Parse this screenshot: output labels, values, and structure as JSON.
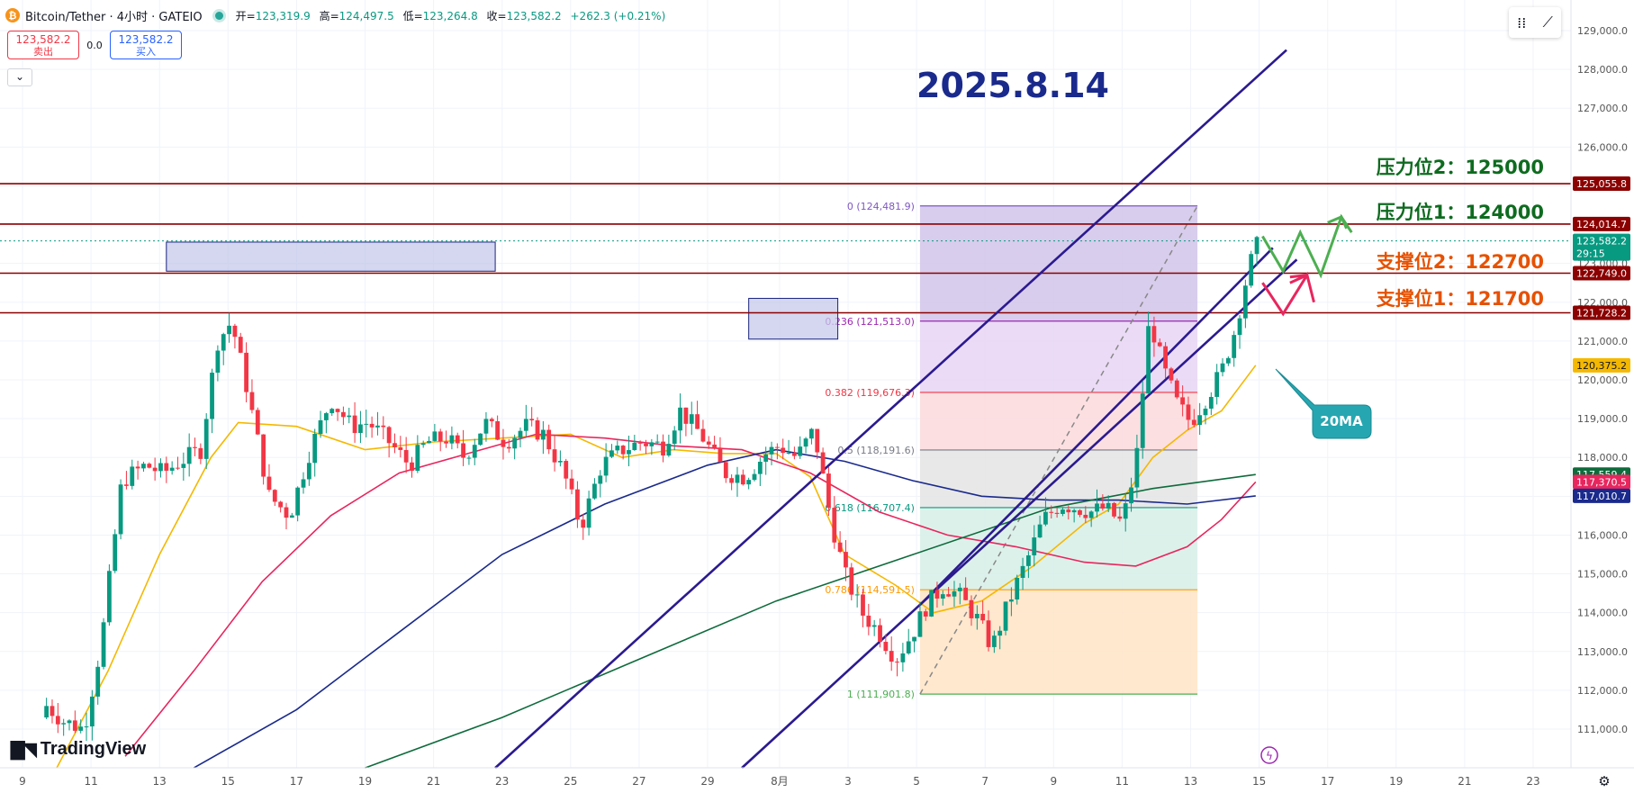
{
  "header": {
    "symbol_title": "Bitcoin/Tether · 4小时 · GATEIO",
    "ohlc_open_label": "开=",
    "ohlc_open": "123,319.9",
    "ohlc_high_label": "高=",
    "ohlc_high": "124,497.5",
    "ohlc_low_label": "低=",
    "ohlc_low": "123,264.8",
    "ohlc_close_label": "收=",
    "ohlc_close": "123,582.2",
    "ohlc_change": "+262.3 (+0.21%)"
  },
  "trade": {
    "sell_price": "123,582.2",
    "sell_label": "卖出",
    "spread": "0.0",
    "buy_price": "123,582.2",
    "buy_label": "买入"
  },
  "branding": {
    "logo_text": "TradingView"
  },
  "chart_data": {
    "type": "candlestick",
    "title": "2025.8.14",
    "ylim": [
      110000,
      129500
    ],
    "y_ticks": [
      111000,
      112000,
      113000,
      114000,
      115000,
      116000,
      117000,
      118000,
      119000,
      120000,
      121000,
      122000,
      123000,
      124000,
      125000,
      126000,
      127000,
      128000,
      129000
    ],
    "y_tick_labels": [
      "111,000.0",
      "112,000.0",
      "113,000.0",
      "114,000.0",
      "115,000.0",
      "116,000.0",
      "117,000.0",
      "118,000.0",
      "119,000.0",
      "120,000.0",
      "121,000.0",
      "122,000.0",
      "123,000.0",
      "124,000.0",
      "125,000.0",
      "126,000.0",
      "127,000.0",
      "128,000.0",
      "129,000.0"
    ],
    "x_tick_labels": [
      "9",
      "11",
      "13",
      "15",
      "17",
      "19",
      "21",
      "23",
      "25",
      "27",
      "29",
      "8月",
      "3",
      "5",
      "7",
      "9",
      "11",
      "13",
      "15",
      "17",
      "19",
      "21",
      "23"
    ],
    "x_tick_days": [
      0,
      2,
      4,
      6,
      8,
      10,
      12,
      14,
      16,
      18,
      20,
      22.1,
      24.1,
      26.1,
      28.1,
      30.1,
      32.1,
      34.1,
      36.1,
      38.1,
      40.1,
      42.1,
      44.1
    ],
    "candle_track_days": [
      [
        0.7,
        111600
      ],
      [
        1.2,
        111200
      ],
      [
        1.8,
        111000
      ],
      [
        2.3,
        113200
      ],
      [
        2.9,
        117400
      ],
      [
        3.6,
        117800
      ],
      [
        4.1,
        117600
      ],
      [
        4.6,
        117900
      ],
      [
        5.2,
        118200
      ],
      [
        5.7,
        121000
      ],
      [
        6.1,
        121500
      ],
      [
        6.5,
        120000
      ],
      [
        7.2,
        117000
      ],
      [
        7.8,
        116500
      ],
      [
        8.4,
        118200
      ],
      [
        9.0,
        119500
      ],
      [
        9.6,
        118800
      ],
      [
        10.1,
        118900
      ],
      [
        10.7,
        118400
      ],
      [
        11.3,
        117800
      ],
      [
        11.8,
        118400
      ],
      [
        12.4,
        118500
      ],
      [
        12.9,
        118000
      ],
      [
        13.5,
        118900
      ],
      [
        14.1,
        118400
      ],
      [
        14.7,
        118800
      ],
      [
        15.2,
        118600
      ],
      [
        15.8,
        117600
      ],
      [
        16.3,
        116200
      ],
      [
        16.9,
        117800
      ],
      [
        17.5,
        118200
      ],
      [
        18.1,
        118400
      ],
      [
        18.7,
        118300
      ],
      [
        19.2,
        119200
      ],
      [
        19.8,
        118600
      ],
      [
        20.5,
        117600
      ],
      [
        21.1,
        117500
      ],
      [
        21.7,
        118100
      ],
      [
        22.1,
        118300
      ],
      [
        22.6,
        118000
      ],
      [
        23.1,
        118700
      ],
      [
        23.6,
        116400
      ],
      [
        24.0,
        115000
      ],
      [
        24.5,
        114000
      ],
      [
        25.0,
        113500
      ],
      [
        25.5,
        112800
      ],
      [
        26.0,
        113500
      ],
      [
        26.4,
        114200
      ],
      [
        26.9,
        114700
      ],
      [
        27.4,
        114400
      ],
      [
        27.9,
        113800
      ],
      [
        28.3,
        113100
      ],
      [
        28.8,
        114300
      ],
      [
        29.3,
        115300
      ],
      [
        29.8,
        116400
      ],
      [
        30.3,
        116800
      ],
      [
        30.8,
        116700
      ],
      [
        31.2,
        116600
      ],
      [
        31.6,
        116700
      ],
      [
        32.1,
        116300
      ],
      [
        32.5,
        117800
      ],
      [
        32.9,
        121600
      ],
      [
        33.3,
        120300
      ],
      [
        33.7,
        119400
      ],
      [
        34.1,
        118900
      ],
      [
        34.6,
        119600
      ],
      [
        35.0,
        120200
      ],
      [
        35.4,
        121300
      ],
      [
        35.8,
        122900
      ],
      [
        36.1,
        123600
      ]
    ],
    "series": [
      {
        "name": "20MA",
        "color": "#f5b800",
        "points": [
          [
            1.0,
            110000
          ],
          [
            2.5,
            112500
          ],
          [
            4.0,
            115500
          ],
          [
            5.5,
            118000
          ],
          [
            6.3,
            118900
          ],
          [
            8.0,
            118800
          ],
          [
            10.0,
            118200
          ],
          [
            12.0,
            118400
          ],
          [
            14.0,
            118500
          ],
          [
            16.0,
            118600
          ],
          [
            17.5,
            118000
          ],
          [
            19.0,
            118200
          ],
          [
            20.5,
            118100
          ],
          [
            22.0,
            118100
          ],
          [
            23.0,
            117500
          ],
          [
            24.0,
            115500
          ],
          [
            25.5,
            114700
          ],
          [
            26.6,
            114000
          ],
          [
            28.0,
            114300
          ],
          [
            29.5,
            115200
          ],
          [
            31.0,
            116300
          ],
          [
            32.0,
            116800
          ],
          [
            33.0,
            118000
          ],
          [
            34.0,
            118700
          ],
          [
            35.0,
            119200
          ],
          [
            36.0,
            120375
          ]
        ]
      },
      {
        "name": "",
        "color": "#e8265e",
        "points": [
          [
            3.0,
            110300
          ],
          [
            5.0,
            112500
          ],
          [
            7.0,
            114800
          ],
          [
            9.0,
            116500
          ],
          [
            11.0,
            117600
          ],
          [
            13.0,
            118100
          ],
          [
            15.0,
            118600
          ],
          [
            17.0,
            118500
          ],
          [
            19.0,
            118300
          ],
          [
            21.0,
            118200
          ],
          [
            23.0,
            117600
          ],
          [
            25.0,
            116600
          ],
          [
            27.0,
            116000
          ],
          [
            29.0,
            115700
          ],
          [
            31.0,
            115300
          ],
          [
            32.5,
            115200
          ],
          [
            34.0,
            115700
          ],
          [
            35.0,
            116400
          ],
          [
            36.0,
            117370
          ]
        ]
      },
      {
        "name": "",
        "color": "#1a2a8c",
        "points": [
          [
            5.0,
            110000
          ],
          [
            8.0,
            111500
          ],
          [
            11.0,
            113500
          ],
          [
            14.0,
            115500
          ],
          [
            17.0,
            116800
          ],
          [
            20.0,
            117800
          ],
          [
            22.0,
            118200
          ],
          [
            24.0,
            117900
          ],
          [
            26.0,
            117400
          ],
          [
            28.0,
            117000
          ],
          [
            30.0,
            116900
          ],
          [
            32.0,
            116900
          ],
          [
            34.0,
            116800
          ],
          [
            36.0,
            117010
          ]
        ]
      },
      {
        "name": "",
        "color": "#0e6b3c",
        "points": [
          [
            10.0,
            110000
          ],
          [
            14.0,
            111300
          ],
          [
            18.0,
            112800
          ],
          [
            22.0,
            114300
          ],
          [
            26.0,
            115500
          ],
          [
            30.0,
            116700
          ],
          [
            33.0,
            117200
          ],
          [
            36.0,
            117559
          ]
        ]
      }
    ],
    "fibonacci": [
      {
        "ratio": "0",
        "value": 124481.9,
        "label": "0 (124,481.9)",
        "color": "#7e57c2"
      },
      {
        "ratio": "0.236",
        "value": 121513.0,
        "label": "0.236 (121,513.0)",
        "color": "#9c27b0"
      },
      {
        "ratio": "0.382",
        "value": 119676.3,
        "label": "0.382 (119,676.3)",
        "color": "#f23645"
      },
      {
        "ratio": "0.5",
        "value": 118191.6,
        "label": "0.5 (118,191.6)",
        "color": "#787b86"
      },
      {
        "ratio": "0.618",
        "value": 116707.4,
        "label": "0.618 (116,707.4)",
        "color": "#089981"
      },
      {
        "ratio": "0.786",
        "value": 114591.5,
        "label": "0.786 (114,591.5)",
        "color": "#ff9800"
      },
      {
        "ratio": "1",
        "value": 111901.8,
        "label": "1 (111,901.8)",
        "color": "#4caf50"
      }
    ],
    "fib_range_days": [
      26.2,
      34.3
    ],
    "levels": [
      {
        "name": "压力位2",
        "value": 125055.8,
        "label_text": "压力位2：125000",
        "price_label": "125,055.8",
        "color": "#0e6b1f",
        "tag_color": "#8b0000"
      },
      {
        "name": "压力位1",
        "value": 124014.7,
        "label_text": "压力位1：124000",
        "price_label": "124,014.7",
        "color": "#0e6b1f",
        "tag_color": "#8b0000"
      },
      {
        "name": "支撑位2",
        "value": 122749.0,
        "label_text": "支撑位2：122700",
        "price_label": "122,749.0",
        "color": "#e65100",
        "tag_color": "#8b0000"
      },
      {
        "name": "支撑位1",
        "value": 121728.2,
        "label_text": "支撑位1：121700",
        "price_label": "121,728.2",
        "color": "#e65100",
        "tag_color": "#8b0000"
      }
    ],
    "price_tags": [
      {
        "price_label": "123,582.2",
        "sub": "29:15",
        "value": 123582.2,
        "color": "#089981"
      },
      {
        "price_label": "120,375.2",
        "value": 120375.2,
        "color": "#f5b800"
      },
      {
        "price_label": "117,559.4",
        "value": 117559.4,
        "color": "#0e6b3c"
      },
      {
        "price_label": "117,370.5",
        "value": 117370.5,
        "color": "#e8265e"
      },
      {
        "price_label": "117,010.7",
        "value": 117010.7,
        "color": "#1a2a8c"
      }
    ],
    "callout": {
      "text": "20MA",
      "color": "#26a6b0"
    },
    "channel_color": "#2b1a8f",
    "forecast_colors": {
      "bull": "#4caf50",
      "bear": "#e8265e"
    }
  }
}
